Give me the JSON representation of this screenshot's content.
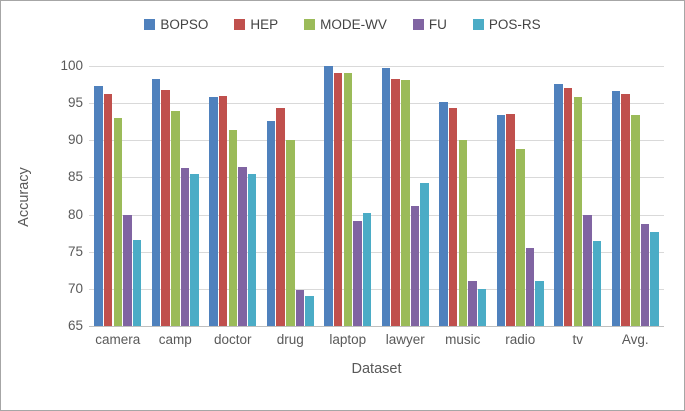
{
  "chart_data": {
    "type": "bar",
    "title": "",
    "xlabel": "Dataset",
    "ylabel": "Accuracy",
    "ylim": [
      65,
      100
    ],
    "yticks": [
      100,
      95,
      90,
      85,
      80,
      75,
      70,
      65
    ],
    "grid": "horizontal",
    "legend_position": "top-center",
    "categories": [
      "camera",
      "camp",
      "doctor",
      "drug",
      "laptop",
      "lawyer",
      "music",
      "radio",
      "tv",
      "Avg."
    ],
    "series": [
      {
        "name": "BOPSO",
        "color": "#4F81BD",
        "values": [
          97.3,
          98.2,
          95.8,
          92.6,
          100.0,
          99.8,
          95.2,
          93.4,
          97.6,
          96.6
        ]
      },
      {
        "name": "HEP",
        "color": "#C0504D",
        "values": [
          96.2,
          96.8,
          96.0,
          94.4,
          99.0,
          98.2,
          94.4,
          93.6,
          97.0,
          96.2
        ]
      },
      {
        "name": "MODE-WV",
        "color": "#9BBB59",
        "values": [
          93.0,
          94.0,
          91.4,
          90.0,
          99.0,
          98.1,
          90.1,
          88.8,
          95.8,
          93.4
        ]
      },
      {
        "name": "FU",
        "color": "#8064A2",
        "values": [
          80.0,
          86.3,
          86.4,
          69.9,
          79.2,
          81.2,
          71.0,
          75.5,
          80.0,
          78.8
        ]
      },
      {
        "name": "POS-RS",
        "color": "#4BACC6",
        "values": [
          76.6,
          85.5,
          85.4,
          69.0,
          80.2,
          84.2,
          70.0,
          71.1,
          76.4,
          77.6
        ]
      }
    ],
    "colors": {
      "gridline": "#D9D9D9",
      "axis_line": "#BFBFBF",
      "tick_text": "#595959",
      "legend_text": "#444444",
      "frame_border": "#A6A6A6",
      "background": "#FFFFFF"
    }
  }
}
